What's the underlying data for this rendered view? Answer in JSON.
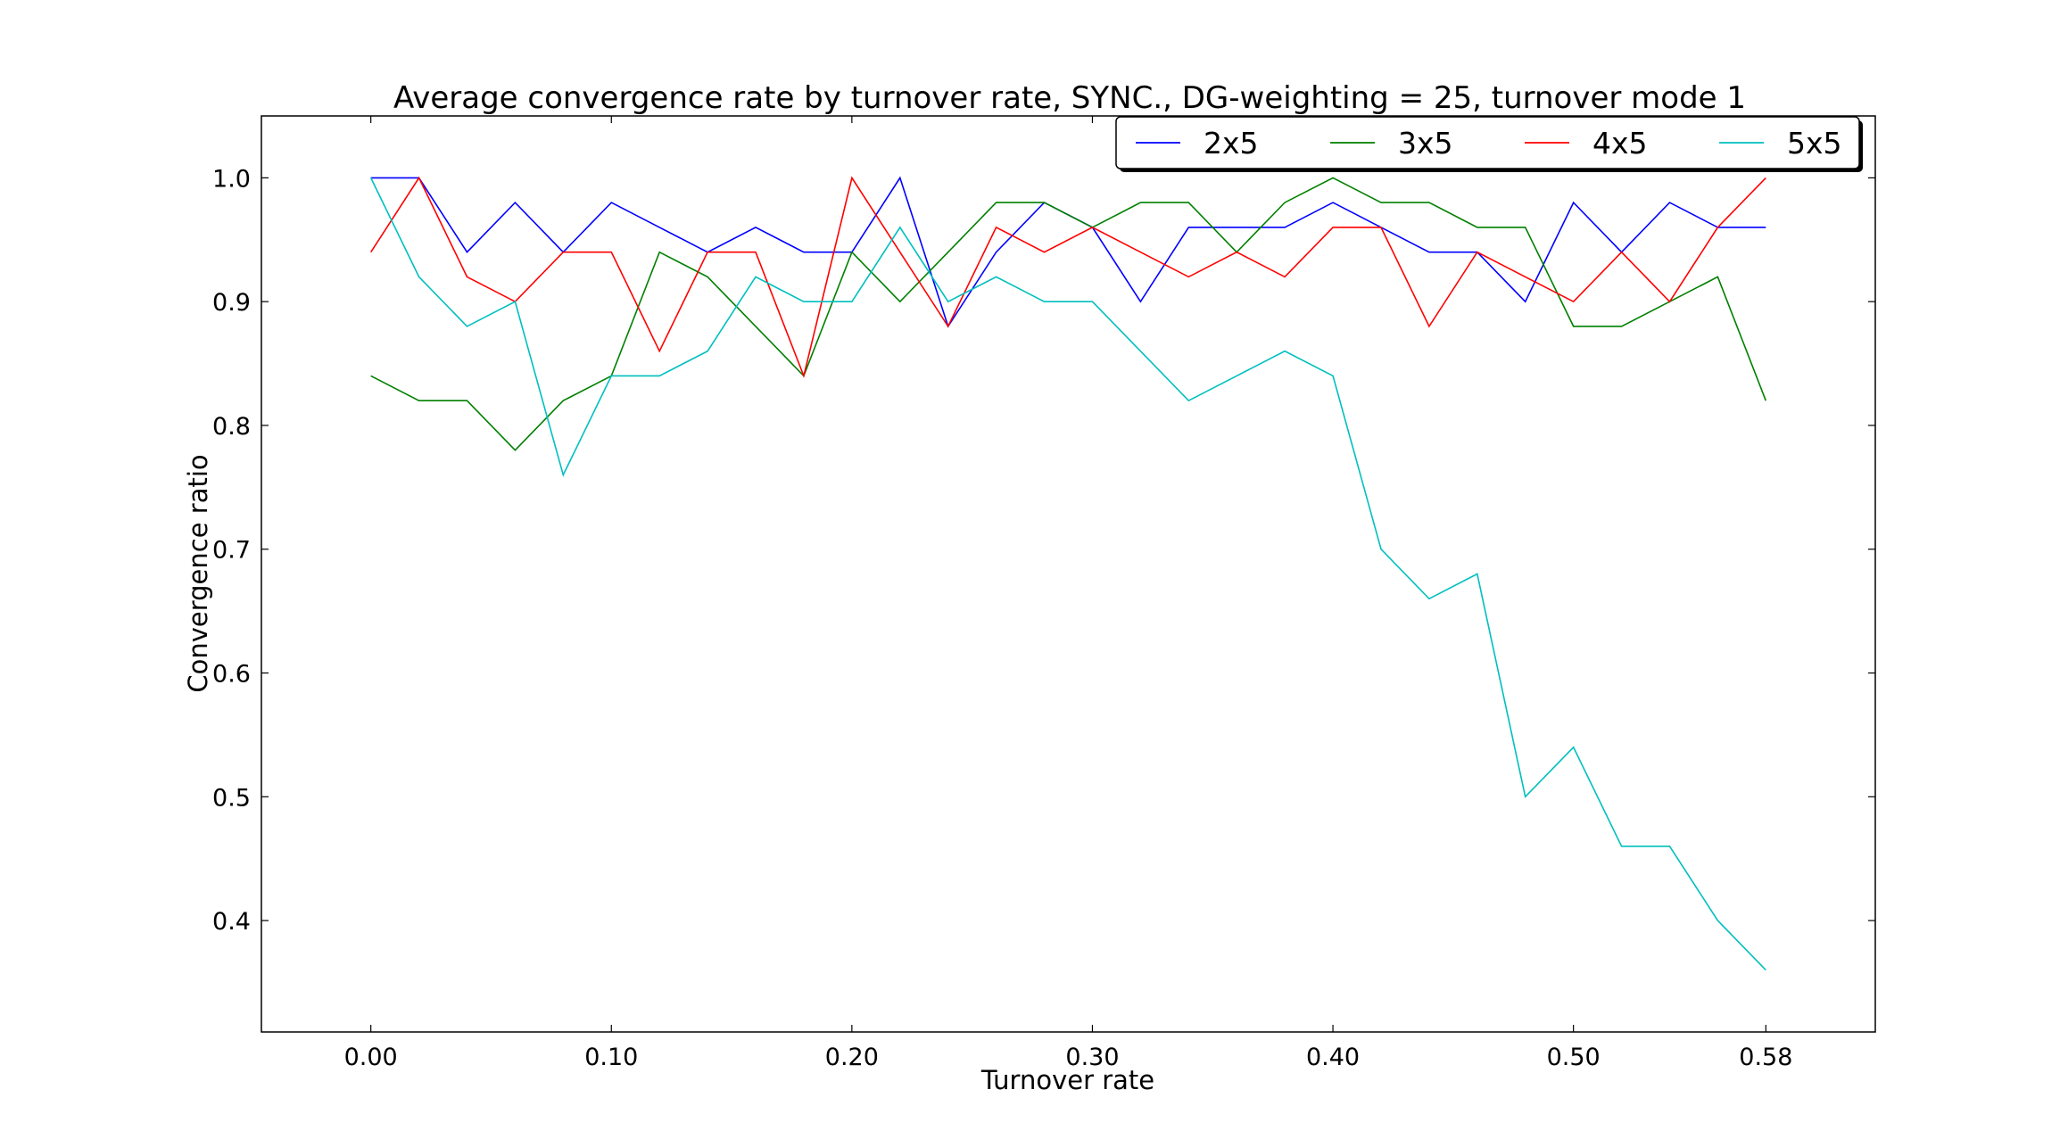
{
  "chart_data": {
    "type": "line",
    "title": "Average convergence rate by turnover rate, SYNC., DG-weighting = 25, turnover mode 1",
    "xlabel": "Turnover rate",
    "ylabel": "Convergence ratio",
    "xlim": [
      -0.0455,
      0.6255
    ],
    "ylim": [
      0.31,
      1.05
    ],
    "grid": false,
    "legend_position": "top-right",
    "legend_columns": 4,
    "x_tick_values": [
      0.0,
      0.1,
      0.2,
      0.3,
      0.4,
      0.5,
      0.58
    ],
    "x_tick_labels": [
      "0.00",
      "0.10",
      "0.20",
      "0.30",
      "0.40",
      "0.50",
      "0.58"
    ],
    "y_ticks": [
      0.4,
      0.5,
      0.6,
      0.7,
      0.8,
      0.9,
      1.0
    ],
    "y_tick_labels": [
      "0.4",
      "0.5",
      "0.6",
      "0.7",
      "0.8",
      "0.9",
      "1.0"
    ],
    "x": [
      0.0,
      0.02,
      0.04,
      0.06,
      0.08,
      0.1,
      0.12,
      0.14,
      0.16,
      0.18,
      0.2,
      0.22,
      0.24,
      0.26,
      0.28,
      0.3,
      0.32,
      0.34,
      0.36,
      0.38,
      0.4,
      0.42,
      0.44,
      0.46,
      0.48,
      0.5,
      0.52,
      0.54,
      0.56,
      0.58
    ],
    "series": [
      {
        "name": "2x5",
        "color": "#0000ff",
        "values": [
          1.0,
          1.0,
          0.94,
          0.98,
          0.94,
          0.98,
          0.96,
          0.94,
          0.96,
          0.94,
          0.94,
          1.0,
          0.88,
          0.94,
          0.98,
          0.96,
          0.9,
          0.96,
          0.96,
          0.96,
          0.98,
          0.96,
          0.94,
          0.94,
          0.9,
          0.98,
          0.94,
          0.98,
          0.96,
          0.96
        ]
      },
      {
        "name": "3x5",
        "color": "#008000",
        "values": [
          0.84,
          0.82,
          0.82,
          0.78,
          0.82,
          0.84,
          0.94,
          0.92,
          0.88,
          0.84,
          0.94,
          0.9,
          0.94,
          0.98,
          0.98,
          0.96,
          0.98,
          0.98,
          0.94,
          0.98,
          1.0,
          0.98,
          0.98,
          0.96,
          0.96,
          0.88,
          0.88,
          0.9,
          0.92,
          0.82
        ]
      },
      {
        "name": "4x5",
        "color": "#ff0000",
        "values": [
          0.94,
          1.0,
          0.92,
          0.9,
          0.94,
          0.94,
          0.86,
          0.94,
          0.94,
          0.84,
          1.0,
          0.94,
          0.88,
          0.96,
          0.94,
          0.96,
          0.94,
          0.92,
          0.94,
          0.92,
          0.96,
          0.96,
          0.88,
          0.94,
          0.92,
          0.9,
          0.94,
          0.9,
          0.96,
          1.0
        ]
      },
      {
        "name": "5x5",
        "color": "#00bfbf",
        "values": [
          1.0,
          0.92,
          0.88,
          0.9,
          0.76,
          0.84,
          0.84,
          0.86,
          0.92,
          0.9,
          0.9,
          0.96,
          0.9,
          0.92,
          0.9,
          0.9,
          0.86,
          0.82,
          0.84,
          0.86,
          0.84,
          0.7,
          0.66,
          0.68,
          0.5,
          0.54,
          0.46,
          0.46,
          0.4,
          0.36
        ]
      }
    ]
  }
}
